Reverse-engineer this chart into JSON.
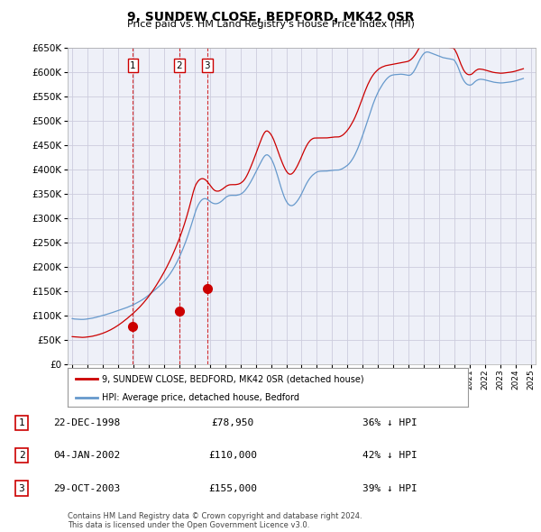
{
  "title": "9, SUNDEW CLOSE, BEDFORD, MK42 0SR",
  "subtitle": "Price paid vs. HM Land Registry's House Price Index (HPI)",
  "legend_label_red": "9, SUNDEW CLOSE, BEDFORD, MK42 0SR (detached house)",
  "legend_label_blue": "HPI: Average price, detached house, Bedford",
  "footer": "Contains HM Land Registry data © Crown copyright and database right 2024.\nThis data is licensed under the Open Government Licence v3.0.",
  "sales": [
    {
      "num": 1,
      "date": "22-DEC-1998",
      "date_x": 1998.97,
      "price": 78950,
      "pct": "36% ↓ HPI"
    },
    {
      "num": 2,
      "date": "04-JAN-2002",
      "date_x": 2002.01,
      "price": 110000,
      "pct": "42% ↓ HPI"
    },
    {
      "num": 3,
      "date": "29-OCT-2003",
      "date_x": 2003.83,
      "price": 155000,
      "pct": "39% ↓ HPI"
    }
  ],
  "ylim": [
    0,
    650000
  ],
  "yticks": [
    0,
    50000,
    100000,
    150000,
    200000,
    250000,
    300000,
    350000,
    400000,
    450000,
    500000,
    550000,
    600000,
    650000
  ],
  "xlim_min": 1994.7,
  "xlim_max": 2025.3,
  "red_color": "#cc0000",
  "blue_color": "#6699cc",
  "grid_color": "#ccccdd",
  "background_color": "#ffffff",
  "plot_bg_color": "#eef0f8",
  "hpi_data_x": [
    1995,
    1995.083,
    1995.167,
    1995.25,
    1995.333,
    1995.417,
    1995.5,
    1995.583,
    1995.667,
    1995.75,
    1995.833,
    1995.917,
    1996,
    1996.083,
    1996.167,
    1996.25,
    1996.333,
    1996.417,
    1996.5,
    1996.583,
    1996.667,
    1996.75,
    1996.833,
    1996.917,
    1997,
    1997.083,
    1997.167,
    1997.25,
    1997.333,
    1997.417,
    1997.5,
    1997.583,
    1997.667,
    1997.75,
    1997.833,
    1997.917,
    1998,
    1998.083,
    1998.167,
    1998.25,
    1998.333,
    1998.417,
    1998.5,
    1998.583,
    1998.667,
    1998.75,
    1998.833,
    1998.917,
    1999,
    1999.083,
    1999.167,
    1999.25,
    1999.333,
    1999.417,
    1999.5,
    1999.583,
    1999.667,
    1999.75,
    1999.833,
    1999.917,
    2000,
    2000.083,
    2000.167,
    2000.25,
    2000.333,
    2000.417,
    2000.5,
    2000.583,
    2000.667,
    2000.75,
    2000.833,
    2000.917,
    2001,
    2001.083,
    2001.167,
    2001.25,
    2001.333,
    2001.417,
    2001.5,
    2001.583,
    2001.667,
    2001.75,
    2001.833,
    2001.917,
    2002,
    2002.083,
    2002.167,
    2002.25,
    2002.333,
    2002.417,
    2002.5,
    2002.583,
    2002.667,
    2002.75,
    2002.833,
    2002.917,
    2003,
    2003.083,
    2003.167,
    2003.25,
    2003.333,
    2003.417,
    2003.5,
    2003.583,
    2003.667,
    2003.75,
    2003.833,
    2003.917,
    2004,
    2004.083,
    2004.167,
    2004.25,
    2004.333,
    2004.417,
    2004.5,
    2004.583,
    2004.667,
    2004.75,
    2004.833,
    2004.917,
    2005,
    2005.083,
    2005.167,
    2005.25,
    2005.333,
    2005.417,
    2005.5,
    2005.583,
    2005.667,
    2005.75,
    2005.833,
    2005.917,
    2006,
    2006.083,
    2006.167,
    2006.25,
    2006.333,
    2006.417,
    2006.5,
    2006.583,
    2006.667,
    2006.75,
    2006.833,
    2006.917,
    2007,
    2007.083,
    2007.167,
    2007.25,
    2007.333,
    2007.417,
    2007.5,
    2007.583,
    2007.667,
    2007.75,
    2007.833,
    2007.917,
    2008,
    2008.083,
    2008.167,
    2008.25,
    2008.333,
    2008.417,
    2008.5,
    2008.583,
    2008.667,
    2008.75,
    2008.833,
    2008.917,
    2009,
    2009.083,
    2009.167,
    2009.25,
    2009.333,
    2009.417,
    2009.5,
    2009.583,
    2009.667,
    2009.75,
    2009.833,
    2009.917,
    2010,
    2010.083,
    2010.167,
    2010.25,
    2010.333,
    2010.417,
    2010.5,
    2010.583,
    2010.667,
    2010.75,
    2010.833,
    2010.917,
    2011,
    2011.083,
    2011.167,
    2011.25,
    2011.333,
    2011.417,
    2011.5,
    2011.583,
    2011.667,
    2011.75,
    2011.833,
    2011.917,
    2012,
    2012.083,
    2012.167,
    2012.25,
    2012.333,
    2012.417,
    2012.5,
    2012.583,
    2012.667,
    2012.75,
    2012.833,
    2012.917,
    2013,
    2013.083,
    2013.167,
    2013.25,
    2013.333,
    2013.417,
    2013.5,
    2013.583,
    2013.667,
    2013.75,
    2013.833,
    2013.917,
    2014,
    2014.083,
    2014.167,
    2014.25,
    2014.333,
    2014.417,
    2014.5,
    2014.583,
    2014.667,
    2014.75,
    2014.833,
    2014.917,
    2015,
    2015.083,
    2015.167,
    2015.25,
    2015.333,
    2015.417,
    2015.5,
    2015.583,
    2015.667,
    2015.75,
    2015.833,
    2015.917,
    2016,
    2016.083,
    2016.167,
    2016.25,
    2016.333,
    2016.417,
    2016.5,
    2016.583,
    2016.667,
    2016.75,
    2016.833,
    2016.917,
    2017,
    2017.083,
    2017.167,
    2017.25,
    2017.333,
    2017.417,
    2017.5,
    2017.583,
    2017.667,
    2017.75,
    2017.833,
    2017.917,
    2018,
    2018.083,
    2018.167,
    2018.25,
    2018.333,
    2018.417,
    2018.5,
    2018.583,
    2018.667,
    2018.75,
    2018.833,
    2018.917,
    2019,
    2019.083,
    2019.167,
    2019.25,
    2019.333,
    2019.417,
    2019.5,
    2019.583,
    2019.667,
    2019.75,
    2019.833,
    2019.917,
    2020,
    2020.083,
    2020.167,
    2020.25,
    2020.333,
    2020.417,
    2020.5,
    2020.583,
    2020.667,
    2020.75,
    2020.833,
    2020.917,
    2021,
    2021.083,
    2021.167,
    2021.25,
    2021.333,
    2021.417,
    2021.5,
    2021.583,
    2021.667,
    2021.75,
    2021.833,
    2021.917,
    2022,
    2022.083,
    2022.167,
    2022.25,
    2022.333,
    2022.417,
    2022.5,
    2022.583,
    2022.667,
    2022.75,
    2022.833,
    2022.917,
    2023,
    2023.083,
    2023.167,
    2023.25,
    2023.333,
    2023.417,
    2023.5,
    2023.583,
    2023.667,
    2023.75,
    2023.833,
    2023.917,
    2024,
    2024.083,
    2024.167,
    2024.25,
    2024.333,
    2024.417,
    2024.5
  ],
  "hpi_data_y": [
    94000,
    93500,
    93200,
    93000,
    92800,
    92600,
    92500,
    92400,
    92400,
    92500,
    92700,
    93000,
    93400,
    93700,
    94100,
    94600,
    95100,
    95700,
    96300,
    97000,
    97700,
    98400,
    99100,
    99800,
    100500,
    101200,
    102000,
    102800,
    103600,
    104400,
    105200,
    106100,
    107000,
    107900,
    108800,
    109700,
    110600,
    111500,
    112400,
    113300,
    114200,
    115100,
    116000,
    117000,
    118100,
    119200,
    120300,
    121500,
    122700,
    124000,
    125400,
    126800,
    128200,
    129700,
    131200,
    132800,
    134500,
    136300,
    138200,
    140200,
    142300,
    144400,
    146600,
    148800,
    151000,
    153200,
    155400,
    157700,
    160000,
    162400,
    164900,
    167500,
    170200,
    173100,
    176200,
    179500,
    183000,
    186800,
    190800,
    195000,
    199500,
    204200,
    209200,
    214500,
    220000,
    225800,
    231800,
    238100,
    244700,
    251600,
    258800,
    266300,
    274200,
    282400,
    290900,
    299600,
    308500,
    316000,
    322500,
    328000,
    332500,
    336000,
    338500,
    340000,
    340500,
    340200,
    339000,
    337000,
    335000,
    333000,
    331500,
    330500,
    330000,
    330000,
    330500,
    331500,
    333000,
    334800,
    337000,
    339500,
    342000,
    344000,
    345500,
    346500,
    347000,
    347200,
    347100,
    347000,
    347100,
    347300,
    347800,
    348500,
    349500,
    351000,
    353000,
    355500,
    358500,
    362000,
    365800,
    370000,
    374500,
    379200,
    384100,
    389200,
    394500,
    399800,
    405000,
    410000,
    415000,
    420000,
    424500,
    428000,
    430000,
    430500,
    429000,
    426500,
    423000,
    418000,
    412000,
    405000,
    397000,
    388500,
    379500,
    370500,
    362000,
    354000,
    346500,
    340000,
    335000,
    331000,
    328000,
    326500,
    326000,
    326500,
    328000,
    330500,
    333500,
    337000,
    341000,
    345500,
    350500,
    356000,
    361500,
    367000,
    372000,
    376500,
    380500,
    384000,
    387000,
    389500,
    391500,
    393500,
    395000,
    396000,
    396500,
    396800,
    397000,
    397000,
    397000,
    397000,
    397200,
    397500,
    397800,
    398200,
    398500,
    398800,
    399000,
    399000,
    399000,
    399200,
    399800,
    400800,
    402000,
    403500,
    405200,
    407000,
    409000,
    411500,
    414500,
    418000,
    422000,
    426500,
    431500,
    437000,
    443000,
    449500,
    456500,
    463800,
    471000,
    478500,
    486500,
    494500,
    502500,
    510500,
    518500,
    526500,
    534000,
    541000,
    547500,
    553500,
    559000,
    564000,
    568500,
    573000,
    577000,
    580500,
    584000,
    587000,
    589500,
    591500,
    593000,
    594000,
    594500,
    595000,
    595200,
    595500,
    595800,
    596000,
    596000,
    595800,
    595500,
    595000,
    594500,
    594000,
    593600,
    594000,
    595500,
    598000,
    601500,
    606000,
    611000,
    616500,
    622000,
    627000,
    631500,
    635500,
    638500,
    640500,
    641500,
    641500,
    641000,
    640000,
    639000,
    638000,
    637000,
    636000,
    635000,
    634000,
    633000,
    632000,
    631000,
    630000,
    629500,
    629000,
    628500,
    628000,
    627500,
    627000,
    626500,
    626000,
    624000,
    620000,
    615000,
    609000,
    602000,
    595000,
    589000,
    584000,
    580000,
    577000,
    575000,
    574000,
    573500,
    574000,
    575500,
    578000,
    580500,
    582500,
    584000,
    585000,
    585500,
    585500,
    585200,
    584800,
    584200,
    583500,
    582800,
    582100,
    581400,
    580700,
    580000,
    579500,
    579100,
    578800,
    578500,
    578200,
    578000,
    578000,
    578200,
    578500,
    578800,
    579200,
    579500,
    579800,
    580200,
    580600,
    581100,
    581700,
    582400,
    583200,
    584000,
    584900,
    585700,
    586500,
    587200
  ],
  "red_data_x": [
    1995,
    1995.083,
    1995.167,
    1995.25,
    1995.333,
    1995.417,
    1995.5,
    1995.583,
    1995.667,
    1995.75,
    1995.833,
    1995.917,
    1996,
    1996.083,
    1996.167,
    1996.25,
    1996.333,
    1996.417,
    1996.5,
    1996.583,
    1996.667,
    1996.75,
    1996.833,
    1996.917,
    1997,
    1997.083,
    1997.167,
    1997.25,
    1997.333,
    1997.417,
    1997.5,
    1997.583,
    1997.667,
    1997.75,
    1997.833,
    1997.917,
    1998,
    1998.083,
    1998.167,
    1998.25,
    1998.333,
    1998.417,
    1998.5,
    1998.583,
    1998.667,
    1998.75,
    1998.833,
    1998.917,
    1999,
    1999.083,
    1999.167,
    1999.25,
    1999.333,
    1999.417,
    1999.5,
    1999.583,
    1999.667,
    1999.75,
    1999.833,
    1999.917,
    2000,
    2000.083,
    2000.167,
    2000.25,
    2000.333,
    2000.417,
    2000.5,
    2000.583,
    2000.667,
    2000.75,
    2000.833,
    2000.917,
    2001,
    2001.083,
    2001.167,
    2001.25,
    2001.333,
    2001.417,
    2001.5,
    2001.583,
    2001.667,
    2001.75,
    2001.833,
    2001.917,
    2002,
    2002.083,
    2002.167,
    2002.25,
    2002.333,
    2002.417,
    2002.5,
    2002.583,
    2002.667,
    2002.75,
    2002.833,
    2002.917,
    2003,
    2003.083,
    2003.167,
    2003.25,
    2003.333,
    2003.417,
    2003.5,
    2003.583,
    2003.667,
    2003.75,
    2003.833,
    2003.917,
    2004,
    2004.083,
    2004.167,
    2004.25,
    2004.333,
    2004.417,
    2004.5,
    2004.583,
    2004.667,
    2004.75,
    2004.833,
    2004.917,
    2005,
    2005.083,
    2005.167,
    2005.25,
    2005.333,
    2005.417,
    2005.5,
    2005.583,
    2005.667,
    2005.75,
    2005.833,
    2005.917,
    2006,
    2006.083,
    2006.167,
    2006.25,
    2006.333,
    2006.417,
    2006.5,
    2006.583,
    2006.667,
    2006.75,
    2006.833,
    2006.917,
    2007,
    2007.083,
    2007.167,
    2007.25,
    2007.333,
    2007.417,
    2007.5,
    2007.583,
    2007.667,
    2007.75,
    2007.833,
    2007.917,
    2008,
    2008.083,
    2008.167,
    2008.25,
    2008.333,
    2008.417,
    2008.5,
    2008.583,
    2008.667,
    2008.75,
    2008.833,
    2008.917,
    2009,
    2009.083,
    2009.167,
    2009.25,
    2009.333,
    2009.417,
    2009.5,
    2009.583,
    2009.667,
    2009.75,
    2009.833,
    2009.917,
    2010,
    2010.083,
    2010.167,
    2010.25,
    2010.333,
    2010.417,
    2010.5,
    2010.583,
    2010.667,
    2010.75,
    2010.833,
    2010.917,
    2011,
    2011.083,
    2011.167,
    2011.25,
    2011.333,
    2011.417,
    2011.5,
    2011.583,
    2011.667,
    2011.75,
    2011.833,
    2011.917,
    2012,
    2012.083,
    2012.167,
    2012.25,
    2012.333,
    2012.417,
    2012.5,
    2012.583,
    2012.667,
    2012.75,
    2012.833,
    2012.917,
    2013,
    2013.083,
    2013.167,
    2013.25,
    2013.333,
    2013.417,
    2013.5,
    2013.583,
    2013.667,
    2013.75,
    2013.833,
    2013.917,
    2014,
    2014.083,
    2014.167,
    2014.25,
    2014.333,
    2014.417,
    2014.5,
    2014.583,
    2014.667,
    2014.75,
    2014.833,
    2014.917,
    2015,
    2015.083,
    2015.167,
    2015.25,
    2015.333,
    2015.417,
    2015.5,
    2015.583,
    2015.667,
    2015.75,
    2015.833,
    2015.917,
    2016,
    2016.083,
    2016.167,
    2016.25,
    2016.333,
    2016.417,
    2016.5,
    2016.583,
    2016.667,
    2016.75,
    2016.833,
    2016.917,
    2017,
    2017.083,
    2017.167,
    2017.25,
    2017.333,
    2017.417,
    2017.5,
    2017.583,
    2017.667,
    2017.75,
    2017.833,
    2017.917,
    2018,
    2018.083,
    2018.167,
    2018.25,
    2018.333,
    2018.417,
    2018.5,
    2018.583,
    2018.667,
    2018.75,
    2018.833,
    2018.917,
    2019,
    2019.083,
    2019.167,
    2019.25,
    2019.333,
    2019.417,
    2019.5,
    2019.583,
    2019.667,
    2019.75,
    2019.833,
    2019.917,
    2020,
    2020.083,
    2020.167,
    2020.25,
    2020.333,
    2020.417,
    2020.5,
    2020.583,
    2020.667,
    2020.75,
    2020.833,
    2020.917,
    2021,
    2021.083,
    2021.167,
    2021.25,
    2021.333,
    2021.417,
    2021.5,
    2021.583,
    2021.667,
    2021.75,
    2021.833,
    2021.917,
    2022,
    2022.083,
    2022.167,
    2022.25,
    2022.333,
    2022.417,
    2022.5,
    2022.583,
    2022.667,
    2022.75,
    2022.833,
    2022.917,
    2023,
    2023.083,
    2023.167,
    2023.25,
    2023.333,
    2023.417,
    2023.5,
    2023.583,
    2023.667,
    2023.75,
    2023.833,
    2023.917,
    2024,
    2024.083,
    2024.167,
    2024.25,
    2024.333,
    2024.417,
    2024.5
  ],
  "red_data_y": [
    57000,
    56800,
    56500,
    56200,
    56000,
    55800,
    55600,
    55500,
    55500,
    55600,
    55800,
    56100,
    56500,
    56800,
    57100,
    57500,
    58000,
    58600,
    59200,
    59900,
    60600,
    61400,
    62200,
    63100,
    64000,
    65000,
    66100,
    67200,
    68400,
    69600,
    70900,
    72300,
    73800,
    75300,
    76900,
    78600,
    80300,
    82100,
    84000,
    85900,
    87900,
    89900,
    92000,
    94100,
    96300,
    98500,
    100800,
    103100,
    105400,
    107800,
    110200,
    112700,
    115300,
    118000,
    120800,
    123700,
    126700,
    129800,
    133000,
    136300,
    139700,
    143200,
    146800,
    150500,
    154400,
    158400,
    162500,
    166700,
    171000,
    175400,
    179900,
    184500,
    189200,
    194000,
    199000,
    204100,
    209400,
    214800,
    220400,
    226200,
    232200,
    238400,
    244700,
    251200,
    257900,
    264900,
    272200,
    279800,
    287800,
    296200,
    305000,
    314200,
    323800,
    333800,
    343900,
    354100,
    362500,
    369000,
    373500,
    377000,
    379500,
    381000,
    381500,
    381200,
    380000,
    378000,
    375200,
    372000,
    368500,
    365000,
    361800,
    359000,
    357000,
    356000,
    355800,
    356000,
    357000,
    358500,
    360200,
    362300,
    364500,
    366200,
    367500,
    368500,
    369000,
    369200,
    369200,
    369100,
    369200,
    369500,
    370000,
    370800,
    372000,
    373800,
    376000,
    379000,
    382800,
    387500,
    392800,
    398600,
    404800,
    411200,
    417800,
    424700,
    431800,
    439000,
    446000,
    453000,
    460000,
    466500,
    472000,
    476500,
    479000,
    479500,
    478000,
    475500,
    472000,
    467500,
    462000,
    455500,
    448500,
    441000,
    433500,
    426500,
    419500,
    413000,
    407000,
    401500,
    397000,
    393500,
    391200,
    390500,
    391000,
    393000,
    396000,
    400000,
    404500,
    409500,
    415000,
    420800,
    427000,
    433000,
    439000,
    444500,
    449500,
    454000,
    457500,
    460500,
    462500,
    464000,
    464800,
    465000,
    465000,
    465000,
    465000,
    465000,
    465000,
    465000,
    465000,
    465000,
    465200,
    465500,
    465800,
    466200,
    466500,
    466800,
    467000,
    467000,
    467000,
    467200,
    467800,
    469000,
    470500,
    472500,
    475000,
    477800,
    481000,
    484500,
    488500,
    493000,
    497500,
    502500,
    508000,
    514000,
    520500,
    527500,
    534500,
    541500,
    548500,
    555500,
    562500,
    569000,
    575000,
    580500,
    585500,
    590000,
    594000,
    597500,
    600500,
    603000,
    605500,
    607500,
    609000,
    610500,
    611500,
    612500,
    613500,
    614000,
    614500,
    615000,
    615500,
    616000,
    616500,
    617000,
    617500,
    618000,
    618500,
    619000,
    619500,
    620000,
    620500,
    621000,
    621500,
    622000,
    623000,
    624500,
    626500,
    629000,
    632000,
    635500,
    639500,
    644000,
    648500,
    653000,
    657000,
    660500,
    663000,
    664500,
    665000,
    665000,
    664500,
    663500,
    662500,
    661500,
    660500,
    659500,
    658500,
    657500,
    656500,
    655500,
    654500,
    653500,
    653000,
    652500,
    652000,
    651500,
    651000,
    650500,
    650000,
    649500,
    647000,
    642500,
    637000,
    630500,
    623500,
    616500,
    610500,
    605000,
    601000,
    598000,
    596000,
    595000,
    595000,
    595500,
    597000,
    599500,
    602000,
    604000,
    605500,
    606500,
    606500,
    606200,
    605800,
    605200,
    604500,
    603700,
    603000,
    602200,
    601500,
    600700,
    600000,
    599500,
    599100,
    598800,
    598500,
    598200,
    598000,
    598000,
    598200,
    598500,
    598800,
    599200,
    599500,
    599800,
    600200,
    600600,
    601100,
    601700,
    602400,
    603200,
    604000,
    604900,
    605700,
    606500,
    607200
  ]
}
